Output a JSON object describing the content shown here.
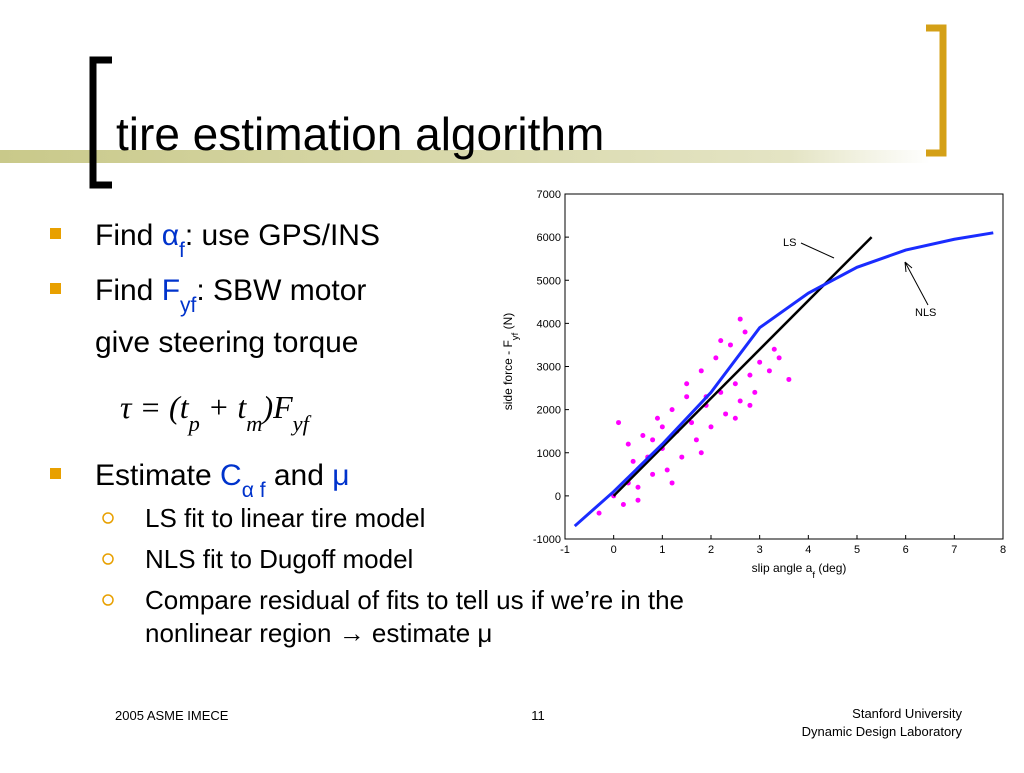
{
  "title": "tire estimation algorithm",
  "bullets": [
    {
      "level": 1,
      "lines": [
        [
          {
            "text": "Find "
          },
          {
            "text": "α",
            "color": "#0033cc"
          },
          {
            "text": "f",
            "color": "#0033cc",
            "sub": true
          },
          {
            "text": ": use GPS/INS"
          }
        ]
      ]
    },
    {
      "level": 1,
      "lines": [
        [
          {
            "text": "Find "
          },
          {
            "text": "F",
            "color": "#0033cc"
          },
          {
            "text": "yf",
            "color": "#0033cc",
            "sub": true
          },
          {
            "text": ": SBW motor"
          }
        ],
        [
          {
            "text": "give steering torque"
          }
        ]
      ]
    },
    {
      "level": 0,
      "lines": [
        [
          {
            "text": "τ = (t",
            "italic": true
          },
          {
            "text": "p",
            "italic": true,
            "sub": true
          },
          {
            "text": " + t",
            "italic": true
          },
          {
            "text": "m",
            "italic": true,
            "sub": true
          },
          {
            "text": ")F",
            "italic": true
          },
          {
            "text": "yf",
            "italic": true,
            "sub": true
          }
        ]
      ]
    },
    {
      "level": 1,
      "lines": [
        [
          {
            "text": "Estimate "
          },
          {
            "text": "C",
            "color": "#0033cc"
          },
          {
            "text": "α f",
            "color": "#0033cc",
            "sub": true
          },
          {
            "text": " and "
          },
          {
            "text": "μ",
            "color": "#0033cc"
          }
        ]
      ]
    },
    {
      "level": 2,
      "lines": [
        [
          {
            "text": "LS fit to linear tire model"
          }
        ]
      ]
    },
    {
      "level": 2,
      "lines": [
        [
          {
            "text": "NLS fit to Dugoff model"
          }
        ]
      ]
    },
    {
      "level": 2,
      "lines": [
        [
          {
            "text": "Compare residual of fits to tell us if we’re in the"
          }
        ],
        [
          {
            "text": "nonlinear region → estimate μ"
          }
        ]
      ]
    }
  ],
  "footer": {
    "left": "2005 ASME IMECE",
    "center": "11",
    "right": [
      "Stanford University",
      "Dynamic Design Laboratory"
    ]
  },
  "chart_data": {
    "type": "scatter",
    "xlabel": [
      "slip angle a",
      "f",
      " (deg)"
    ],
    "ylabel": [
      "side force - F",
      "yf",
      " (N)"
    ],
    "xlim": [
      -1,
      8
    ],
    "xticks": [
      -1,
      0,
      1,
      2,
      3,
      4,
      5,
      6,
      7,
      8
    ],
    "ylim": [
      -1000,
      7000
    ],
    "yticks": [
      -1000,
      0,
      1000,
      2000,
      3000,
      4000,
      5000,
      6000,
      7000
    ],
    "points": {
      "color": "#ff00ff",
      "x": [
        0.0,
        0.2,
        0.3,
        0.4,
        0.5,
        0.6,
        0.7,
        0.8,
        0.9,
        1.0,
        1.1,
        1.2,
        1.3,
        1.4,
        1.5,
        1.6,
        1.7,
        1.8,
        1.9,
        2.0,
        2.1,
        2.2,
        2.3,
        2.4,
        2.5,
        2.6,
        2.7,
        2.8,
        2.9,
        3.0,
        3.2,
        3.4,
        3.6,
        0.1,
        0.5,
        0.8,
        1.2,
        1.5,
        1.8,
        2.2,
        2.5,
        2.8,
        0.3,
        1.0,
        1.9,
        2.6,
        -0.3,
        3.3
      ],
      "y": [
        0,
        -200,
        300,
        800,
        200,
        1400,
        900,
        500,
        1800,
        1100,
        600,
        2000,
        1500,
        900,
        2600,
        1700,
        1300,
        2900,
        2100,
        1600,
        3200,
        2400,
        1900,
        3500,
        2600,
        2200,
        3800,
        2800,
        2400,
        3100,
        2900,
        3200,
        2700,
        1700,
        -100,
        1300,
        300,
        2300,
        1000,
        3600,
        1800,
        2100,
        1200,
        1600,
        2300,
        4100,
        -400,
        3400
      ]
    },
    "series": [
      {
        "name": "LS",
        "color": "#000000",
        "x": [
          0,
          5.3
        ],
        "values": [
          0,
          6000
        ]
      },
      {
        "name": "NLS",
        "color": "#1a2cff",
        "x": [
          -0.8,
          0,
          1,
          2,
          3,
          4,
          5,
          6,
          7,
          7.8
        ],
        "values": [
          -700,
          100,
          1200,
          2400,
          3900,
          4700,
          5300,
          5700,
          5950,
          6100
        ]
      }
    ]
  }
}
